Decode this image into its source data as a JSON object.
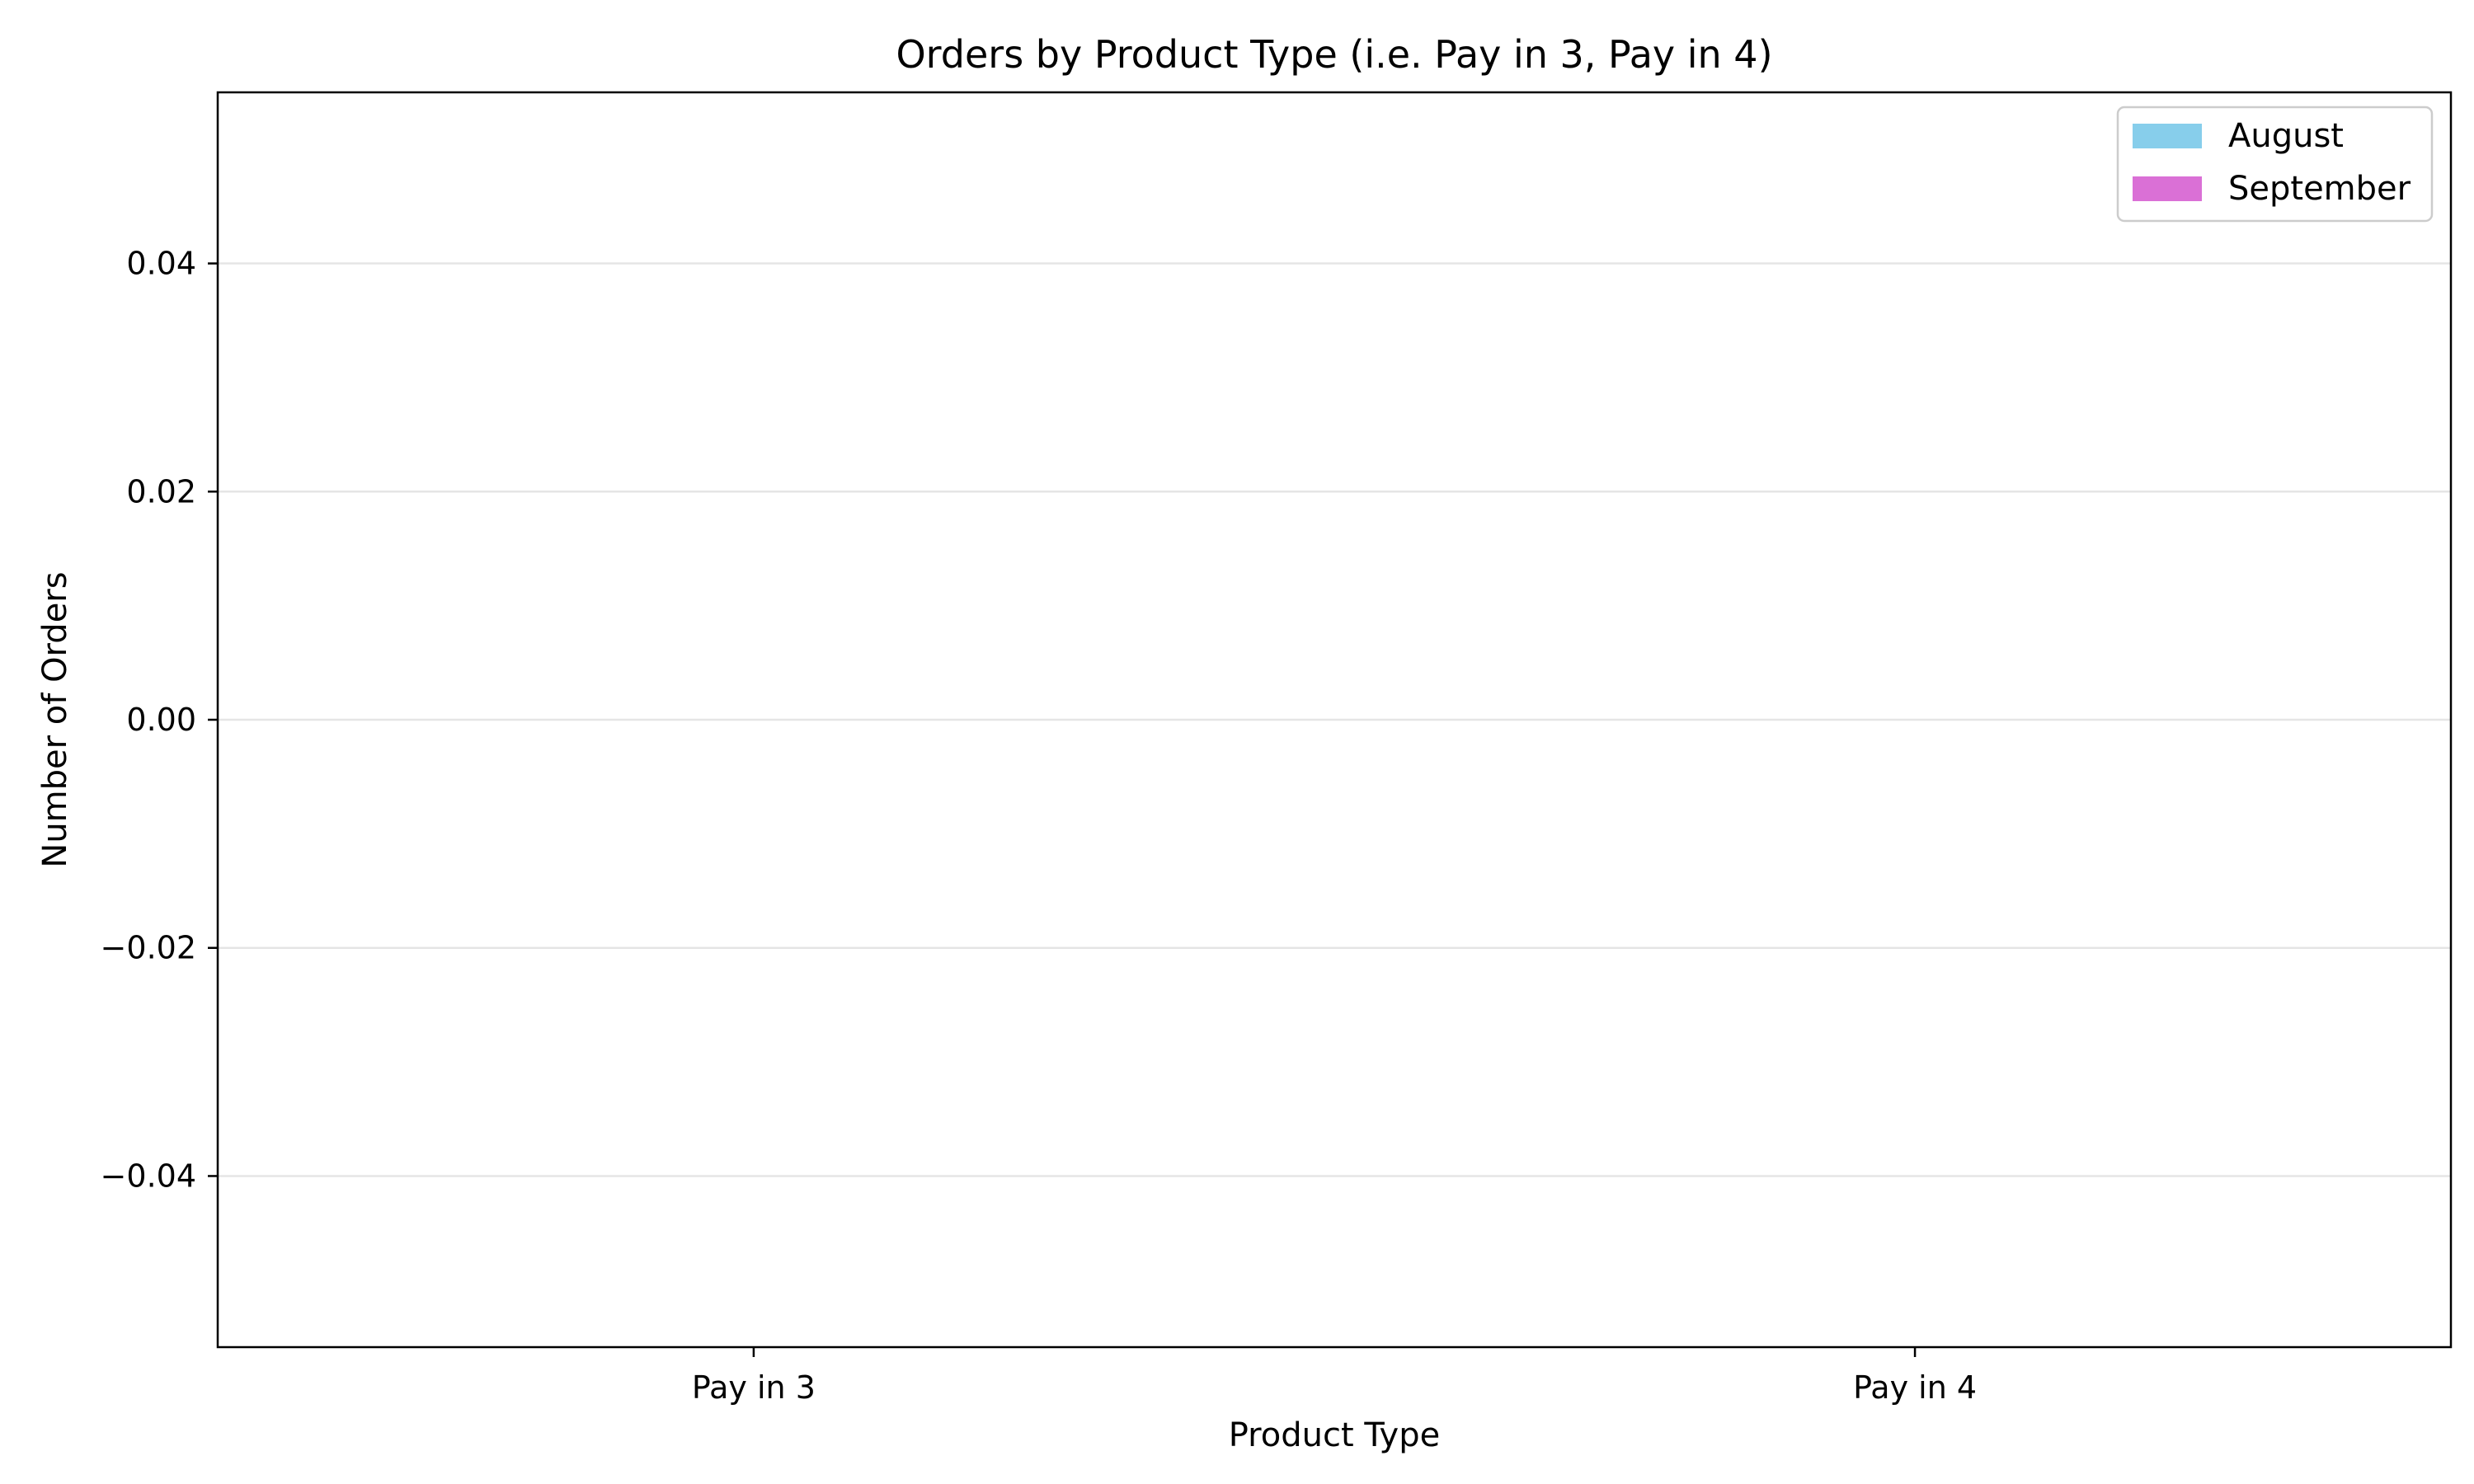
{
  "chart_data": {
    "type": "bar",
    "title": "Orders by Product Type (i.e. Pay in 3, Pay in 4)",
    "xlabel": "Product Type",
    "ylabel": "Number of Orders",
    "categories": [
      "Pay in 3",
      "Pay in 4"
    ],
    "series": [
      {
        "name": "August",
        "values": [
          0,
          0
        ],
        "color": "#87CEEB"
      },
      {
        "name": "September",
        "values": [
          0,
          0
        ],
        "color": "#DA70D6"
      }
    ],
    "ylim": [
      -0.055,
      0.055
    ],
    "yticks": [
      0.04,
      0.02,
      0.0,
      -0.02,
      -0.04
    ],
    "ytick_labels": [
      "0.04",
      "0.02",
      "0.00",
      "−0.02",
      "−0.04"
    ],
    "grid": "y",
    "legend_position": "top-right"
  }
}
